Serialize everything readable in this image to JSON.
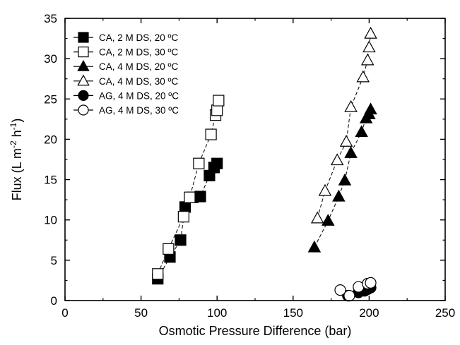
{
  "chart_data": {
    "type": "scatter",
    "xlabel": "Osmotic Pressure Difference (bar)",
    "ylabel": {
      "prefix": "Flux (L m",
      "exp1": "-2",
      "mid": " h",
      "exp2": "-1",
      "suffix": ")"
    },
    "xlim": [
      0,
      250
    ],
    "ylim": [
      0,
      35
    ],
    "xticks": [
      0,
      50,
      100,
      150,
      200,
      250
    ],
    "yticks": [
      0,
      5,
      10,
      15,
      20,
      25,
      30,
      35
    ],
    "grid": false,
    "legend_position": "top-left",
    "connect_points": true,
    "series": [
      {
        "name": "CA, 2 M DS, 20 ºC",
        "marker": "square",
        "filled": true,
        "points": [
          [
            61,
            2.7
          ],
          [
            69,
            5.4
          ],
          [
            76,
            7.5
          ],
          [
            79,
            11.6
          ],
          [
            84,
            12.8
          ],
          [
            89,
            12.9
          ],
          [
            95,
            15.5
          ],
          [
            98,
            16.5
          ],
          [
            100,
            17.0
          ]
        ]
      },
      {
        "name": "CA, 2 M DS, 30 ºC",
        "marker": "square",
        "filled": false,
        "points": [
          [
            61,
            3.3
          ],
          [
            68,
            6.4
          ],
          [
            78,
            10.4
          ],
          [
            82,
            12.8
          ],
          [
            88,
            17.0
          ],
          [
            96,
            20.6
          ],
          [
            99,
            23.0
          ],
          [
            100,
            23.6
          ],
          [
            101,
            24.8
          ]
        ]
      },
      {
        "name": "CA, 4 M DS, 20 ºC",
        "marker": "triangle",
        "filled": true,
        "points": [
          [
            164,
            6.6
          ],
          [
            173,
            9.9
          ],
          [
            180,
            12.9
          ],
          [
            184,
            14.9
          ],
          [
            188,
            18.3
          ],
          [
            195,
            20.9
          ],
          [
            198,
            22.6
          ],
          [
            200,
            23.1
          ],
          [
            201,
            23.7
          ]
        ]
      },
      {
        "name": "CA, 4 M DS, 30 ºC",
        "marker": "triangle",
        "filled": false,
        "points": [
          [
            166,
            10.2
          ],
          [
            171,
            13.6
          ],
          [
            179,
            17.4
          ],
          [
            185,
            19.7
          ],
          [
            188,
            24.0
          ],
          [
            196,
            27.7
          ],
          [
            199,
            29.8
          ],
          [
            200,
            31.4
          ],
          [
            201,
            33.1
          ]
        ]
      },
      {
        "name": "AG, 4 M DS, 20 ºC",
        "marker": "circle",
        "filled": true,
        "points": [
          [
            186,
            0.6
          ],
          [
            193,
            1.0
          ],
          [
            197,
            1.2
          ],
          [
            199,
            1.4
          ],
          [
            201,
            1.6
          ]
        ]
      },
      {
        "name": "AG, 4 M DS, 30 ºC",
        "marker": "circle",
        "filled": false,
        "points": [
          [
            181,
            1.3
          ],
          [
            187,
            0.6
          ],
          [
            193,
            1.7
          ],
          [
            199,
            2.1
          ],
          [
            201,
            2.2
          ]
        ]
      }
    ]
  }
}
